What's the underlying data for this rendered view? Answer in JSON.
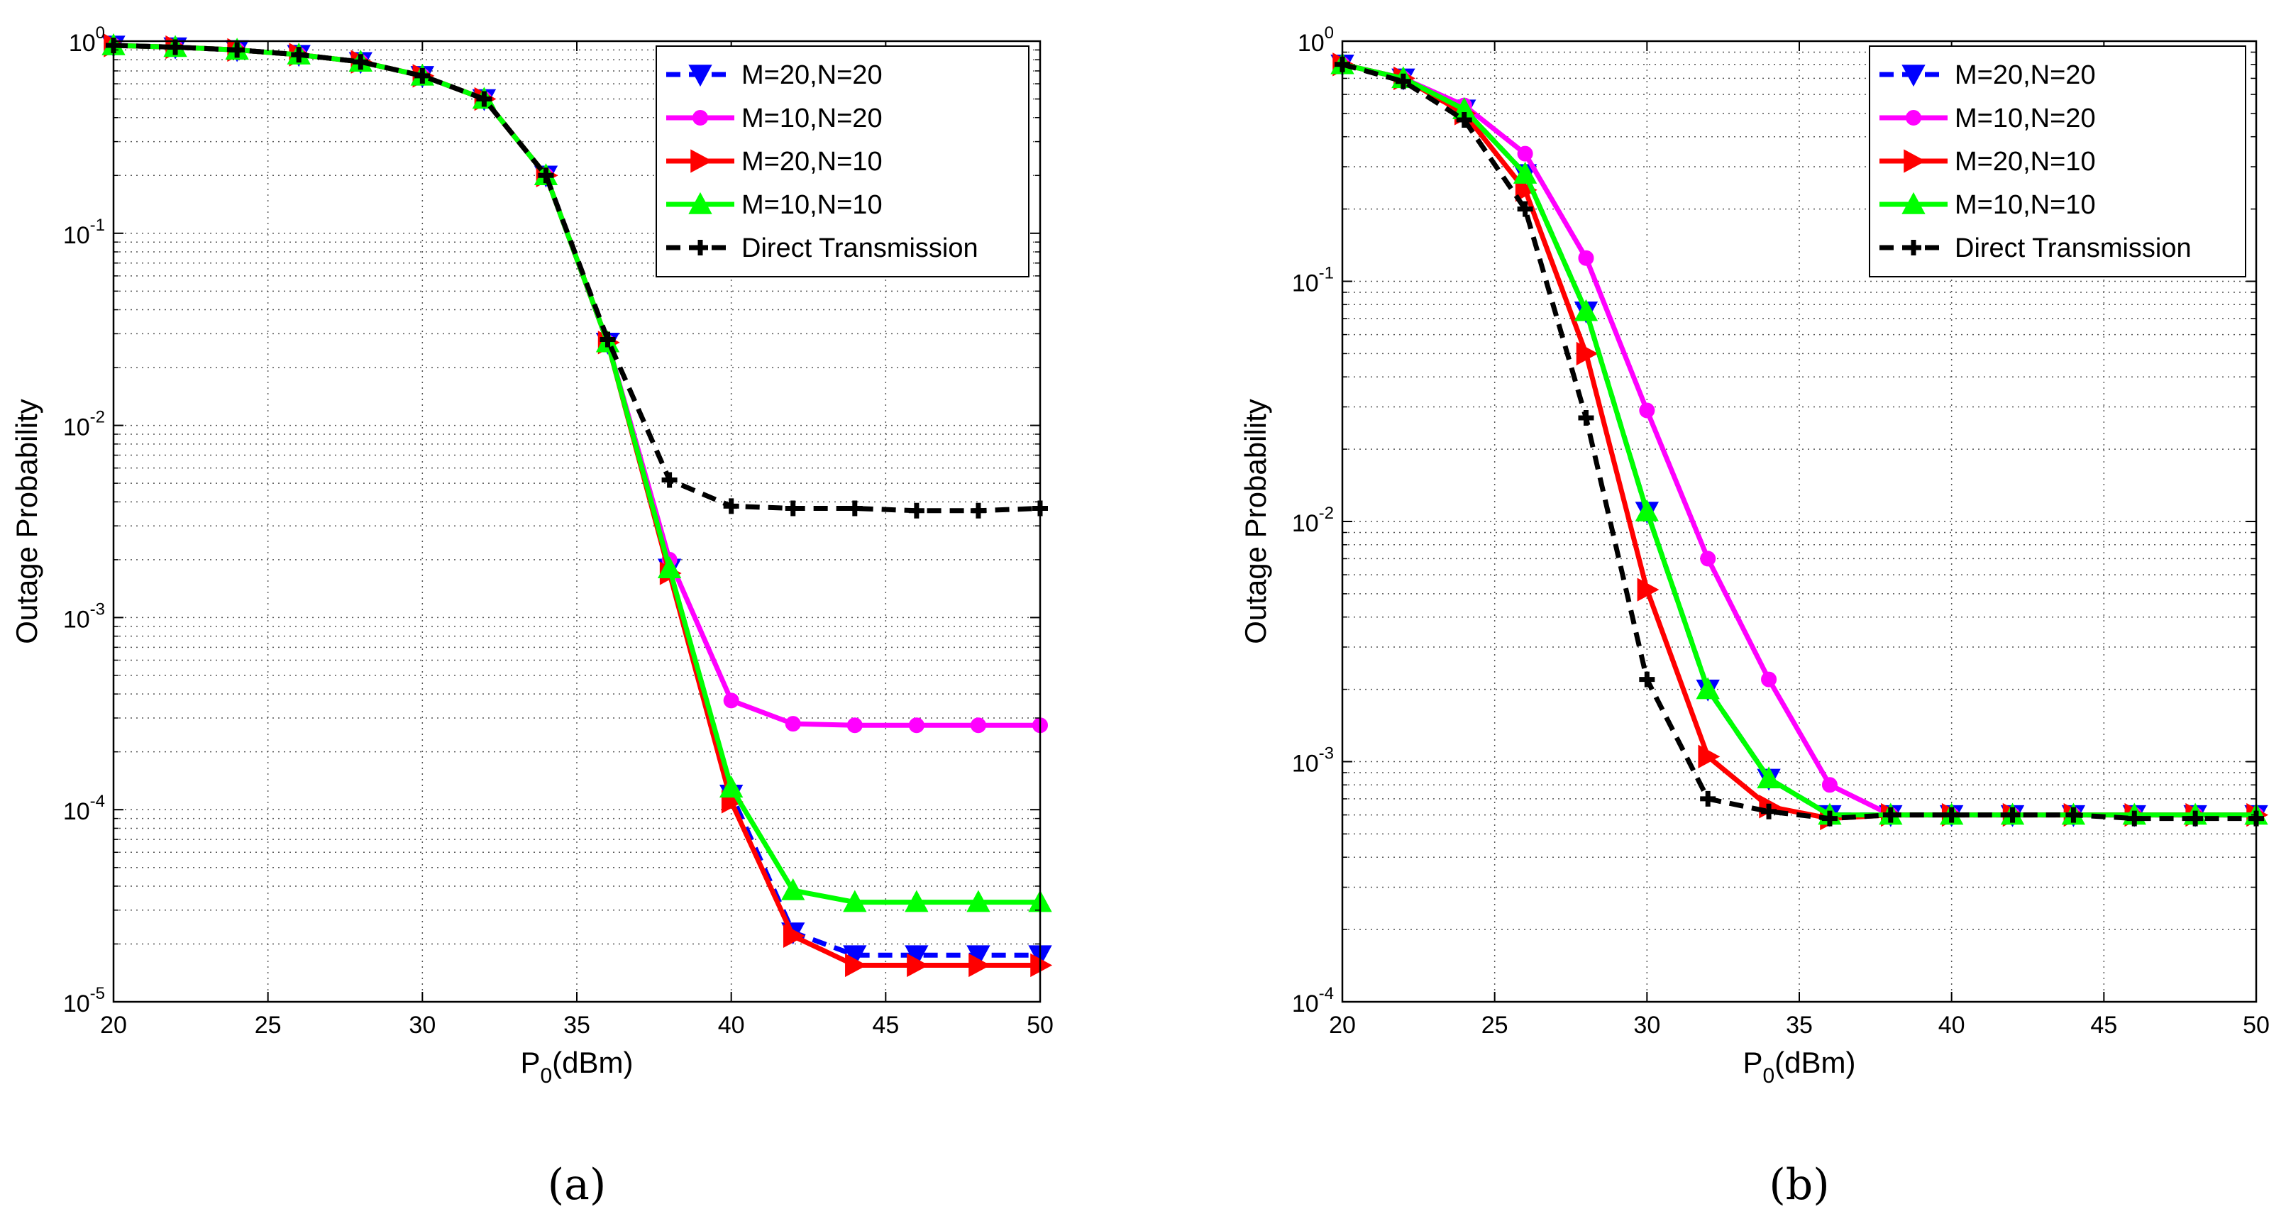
{
  "chart_data": [
    {
      "panel_label": "(a)",
      "type": "line",
      "xlabel": "P",
      "xlabel_sub": "0",
      "xlabel_suffix": "(dBm)",
      "ylabel": "Outage Probability",
      "xlim": [
        20,
        50
      ],
      "ylim_exp": [
        -5,
        0
      ],
      "xticks": [
        20,
        25,
        30,
        35,
        40,
        45,
        50
      ],
      "yticks_exp": [
        0,
        -1,
        -2,
        -3,
        -4,
        -5
      ],
      "ytick_base": "10",
      "grid": true,
      "legend_position": "top-right",
      "x": [
        20,
        22,
        24,
        26,
        28,
        30,
        32,
        34,
        36,
        38,
        40,
        42,
        44,
        46,
        48,
        50
      ],
      "series": [
        {
          "name": "M=20,N=20",
          "color": "#0000ff",
          "dash": "dashed",
          "marker": "triangle-down",
          "values": [
            0.95,
            0.93,
            0.9,
            0.85,
            0.78,
            0.66,
            0.5,
            0.2,
            0.027,
            0.0018,
            0.00012,
            2.3e-05,
            1.75e-05,
            1.75e-05,
            1.75e-05,
            1.75e-05
          ]
        },
        {
          "name": "M=10,N=20",
          "color": "#ff00ff",
          "dash": "solid",
          "marker": "circle",
          "values": [
            0.95,
            0.93,
            0.9,
            0.85,
            0.78,
            0.66,
            0.5,
            0.2,
            0.027,
            0.002,
            0.00037,
            0.00028,
            0.000275,
            0.000275,
            0.000275,
            0.000275
          ]
        },
        {
          "name": "M=20,N=10",
          "color": "#ff0000",
          "dash": "solid",
          "marker": "triangle-right",
          "values": [
            0.95,
            0.93,
            0.9,
            0.85,
            0.78,
            0.66,
            0.5,
            0.2,
            0.027,
            0.0017,
            0.00011,
            2.2e-05,
            1.55e-05,
            1.55e-05,
            1.55e-05,
            1.55e-05
          ]
        },
        {
          "name": "M=10,N=10",
          "color": "#00ff00",
          "dash": "solid",
          "marker": "triangle-up",
          "values": [
            0.95,
            0.93,
            0.9,
            0.85,
            0.78,
            0.66,
            0.5,
            0.2,
            0.027,
            0.0018,
            0.00013,
            3.8e-05,
            3.3e-05,
            3.3e-05,
            3.3e-05,
            3.3e-05
          ]
        },
        {
          "name": "Direct Transmission",
          "color": "#000000",
          "dash": "dashed",
          "marker": "plus",
          "values": [
            0.95,
            0.93,
            0.9,
            0.85,
            0.78,
            0.66,
            0.5,
            0.2,
            0.028,
            0.0052,
            0.0038,
            0.0037,
            0.0037,
            0.0036,
            0.0036,
            0.0037
          ]
        }
      ]
    },
    {
      "panel_label": "(b)",
      "type": "line",
      "xlabel": "P",
      "xlabel_sub": "0",
      "xlabel_suffix": "(dBm)",
      "ylabel": "Outage Probability",
      "xlim": [
        20,
        50
      ],
      "ylim_exp": [
        -4,
        0
      ],
      "xticks": [
        20,
        25,
        30,
        35,
        40,
        45,
        50
      ],
      "yticks_exp": [
        0,
        -1,
        -2,
        -3,
        -4
      ],
      "ytick_base": "10",
      "grid": true,
      "legend_position": "top-right",
      "x": [
        20,
        22,
        24,
        26,
        28,
        30,
        32,
        34,
        36,
        38,
        40,
        42,
        44,
        46,
        48,
        50
      ],
      "series": [
        {
          "name": "M=20,N=20",
          "color": "#0000ff",
          "dash": "dashed",
          "marker": "triangle-down",
          "values": [
            0.8,
            0.7,
            0.52,
            0.28,
            0.075,
            0.011,
            0.002,
            0.00085,
            0.0006,
            0.0006,
            0.0006,
            0.0006,
            0.0006,
            0.0006,
            0.0006,
            0.0006
          ]
        },
        {
          "name": "M=10,N=20",
          "color": "#ff00ff",
          "dash": "solid",
          "marker": "circle",
          "values": [
            0.8,
            0.7,
            0.54,
            0.34,
            0.125,
            0.029,
            0.007,
            0.0022,
            0.0008,
            0.0006,
            0.0006,
            0.0006,
            0.0006,
            0.0006,
            0.0006,
            0.0006
          ]
        },
        {
          "name": "M=20,N=10",
          "color": "#ff0000",
          "dash": "solid",
          "marker": "triangle-right",
          "values": [
            0.8,
            0.7,
            0.5,
            0.24,
            0.05,
            0.0052,
            0.00105,
            0.00065,
            0.00058,
            0.0006,
            0.0006,
            0.0006,
            0.0006,
            0.0006,
            0.0006,
            0.0006
          ]
        },
        {
          "name": "M=10,N=10",
          "color": "#00ff00",
          "dash": "solid",
          "marker": "triangle-up",
          "values": [
            0.8,
            0.7,
            0.52,
            0.28,
            0.075,
            0.011,
            0.002,
            0.00085,
            0.0006,
            0.0006,
            0.0006,
            0.0006,
            0.0006,
            0.0006,
            0.0006,
            0.0006
          ]
        },
        {
          "name": "Direct Transmission",
          "color": "#000000",
          "dash": "dashed",
          "marker": "plus",
          "values": [
            0.8,
            0.68,
            0.47,
            0.2,
            0.027,
            0.0022,
            0.0007,
            0.00062,
            0.00058,
            0.0006,
            0.0006,
            0.0006,
            0.0006,
            0.00058,
            0.00058,
            0.00058
          ]
        }
      ]
    }
  ]
}
